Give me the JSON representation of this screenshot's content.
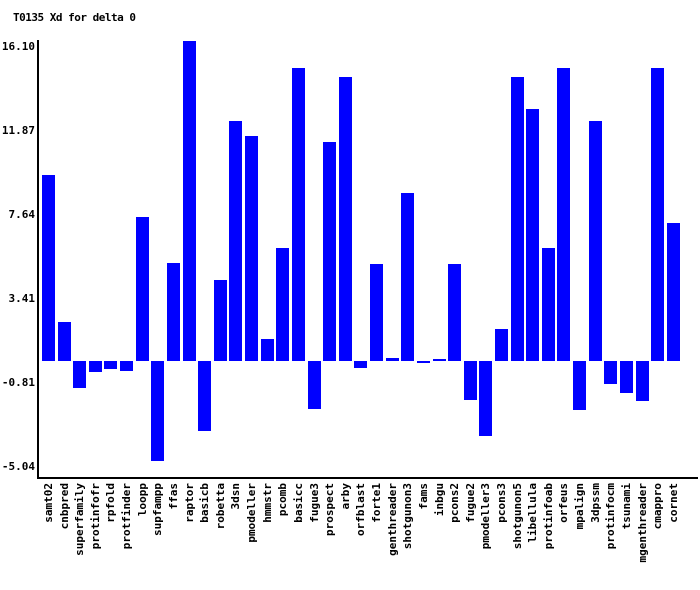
{
  "title": "T0135 Xd for delta 0",
  "chart_data": {
    "type": "bar",
    "title": "T0135 Xd for delta 0",
    "xlabel": "",
    "ylabel": "",
    "bar_color": "#0000ff",
    "axis_color": "#000000",
    "background_color": "#ffffff",
    "grid": false,
    "legend": null,
    "ylim": [
      -5.04,
      16.1
    ],
    "yticks": [
      {
        "label": "16.10",
        "value": 16.1
      },
      {
        "label": "11.87",
        "value": 11.87
      },
      {
        "label": "7.64",
        "value": 7.64
      },
      {
        "label": "3.41",
        "value": 3.41
      },
      {
        "label": "-0.81",
        "value": -0.81
      },
      {
        "label": "-5.04",
        "value": -5.04
      }
    ],
    "categories": [
      "samt02",
      "cnbpred",
      "superfamily",
      "protinfofr",
      "rpfold",
      "protfinder",
      "loopp",
      "supfampp",
      "ffas",
      "raptor",
      "basicb",
      "robetta",
      "3dsn",
      "pmodeller",
      "hmmstr",
      "pcomb",
      "basicc",
      "fugue3",
      "prospect",
      "arby",
      "orfblast",
      "forte1",
      "genthreader",
      "shotgunon3",
      "fams",
      "inbgu",
      "pcons2",
      "fugue2",
      "pmodeller3",
      "pcons3",
      "shotgunon5",
      "libellula",
      "protinfoab",
      "orfeus",
      "mpalign",
      "3dpssm",
      "protinfocm",
      "tsunami",
      "mgenthreader",
      "cmappro",
      "cornet"
    ],
    "values": [
      9.35,
      1.95,
      -1.35,
      -0.55,
      -0.4,
      -0.5,
      7.25,
      -5.04,
      4.95,
      16.1,
      -3.5,
      4.1,
      12.1,
      11.35,
      1.1,
      5.7,
      14.75,
      -2.4,
      11.0,
      14.3,
      -0.35,
      4.9,
      0.15,
      8.45,
      -0.1,
      0.1,
      4.9,
      -1.95,
      -3.75,
      1.6,
      14.3,
      12.7,
      5.7,
      14.75,
      -2.45,
      12.1,
      -1.15,
      -1.6,
      -2.0,
      14.75,
      6.95
    ]
  }
}
